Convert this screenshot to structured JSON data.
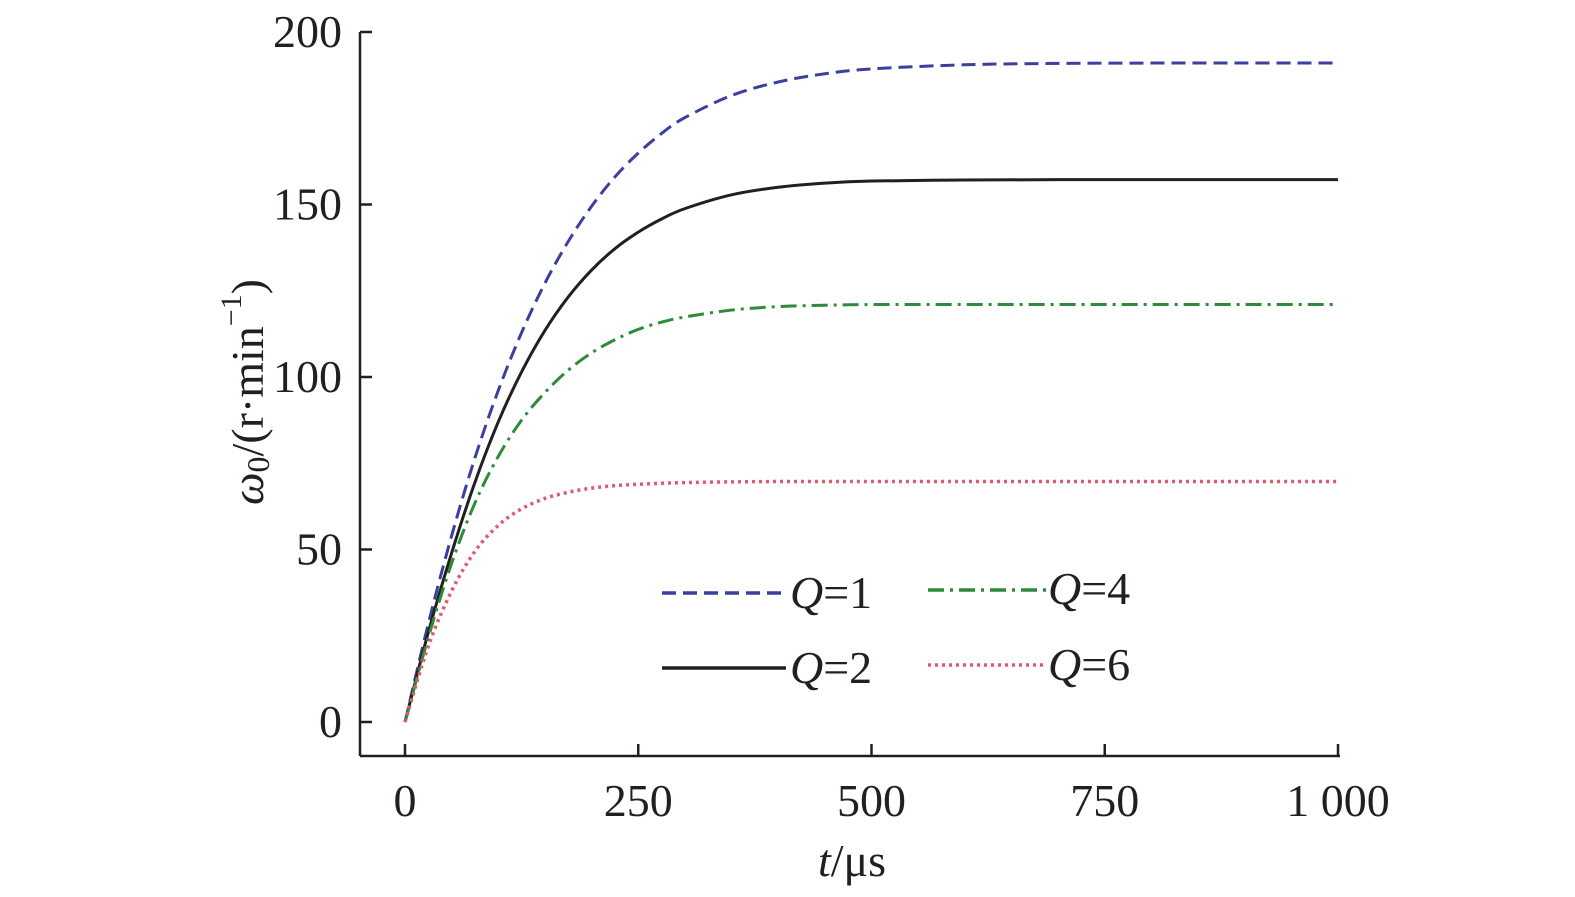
{
  "chart_data": {
    "type": "line",
    "title": "",
    "xlabel": {
      "symbol": "t",
      "unit": "/μs"
    },
    "ylabel": {
      "symbol": "ω",
      "subscript": "0",
      "unit_start": "/(r·min",
      "superscript": "−1",
      "unit_end": ")"
    },
    "xlim": [
      -20,
      1000
    ],
    "ylim": [
      -10,
      200
    ],
    "xticks": [
      0,
      250,
      500,
      750,
      1000
    ],
    "xtick_labels": [
      "0",
      "250",
      "500",
      "750",
      "1 000"
    ],
    "yticks": [
      0,
      50,
      100,
      150,
      200
    ],
    "ytick_labels": [
      "0",
      "50",
      "100",
      "150",
      "200"
    ],
    "grid": false,
    "legend_position": "lower-center",
    "series": [
      {
        "key": "q1",
        "name": "Q=1",
        "name_symbol": "Q",
        "name_value": "=1",
        "color": "#3b3f9e",
        "dash": "dashed",
        "x": [
          0,
          25,
          50,
          75,
          100,
          125,
          150,
          175,
          200,
          225,
          250,
          275,
          300,
          350,
          400,
          450,
          500,
          600,
          700,
          800,
          900,
          1000
        ],
        "y": [
          0,
          28.5,
          54.0,
          76.6,
          96.1,
          112.9,
          127.2,
          139.3,
          149.5,
          158.0,
          164.9,
          170.6,
          175.2,
          181.6,
          185.5,
          187.9,
          189.3,
          190.5,
          190.9,
          191.0,
          191.0,
          191.0
        ]
      },
      {
        "key": "q2",
        "name": "Q=2",
        "name_symbol": "Q",
        "name_value": "=2",
        "color": "#231f20",
        "dash": "solid",
        "x": [
          0,
          25,
          50,
          75,
          100,
          125,
          150,
          175,
          200,
          225,
          250,
          275,
          300,
          350,
          400,
          450,
          500,
          600,
          700,
          800,
          900,
          1000
        ],
        "y": [
          0,
          26.0,
          49.0,
          69.5,
          87.0,
          101.5,
          113.5,
          123.2,
          131.0,
          137.2,
          142.0,
          145.8,
          148.8,
          152.8,
          155.0,
          156.2,
          156.8,
          157.1,
          157.2,
          157.2,
          157.2,
          157.2
        ]
      },
      {
        "key": "q4",
        "name": "Q=4",
        "name_symbol": "Q",
        "name_value": "=4",
        "color": "#2e8b3a",
        "dash": "dashdot",
        "x": [
          0,
          25,
          50,
          75,
          100,
          125,
          150,
          175,
          200,
          225,
          250,
          275,
          300,
          350,
          400,
          450,
          500,
          600,
          700,
          800,
          900,
          1000
        ],
        "y": [
          0,
          24.5,
          46.0,
          63.5,
          77.0,
          87.5,
          95.5,
          102.0,
          107.0,
          110.8,
          113.8,
          115.9,
          117.4,
          119.4,
          120.4,
          120.8,
          121.0,
          121.0,
          121.0,
          121.0,
          121.0,
          121.0
        ]
      },
      {
        "key": "q6",
        "name": "Q=6",
        "name_symbol": "Q",
        "name_value": "=6",
        "color": "#e05a6e",
        "dash": "dotted",
        "x": [
          0,
          25,
          50,
          75,
          100,
          125,
          150,
          175,
          200,
          225,
          250,
          275,
          300,
          350,
          400,
          450,
          500,
          600,
          700,
          800,
          900,
          1000
        ],
        "y": [
          0,
          22.0,
          38.0,
          49.5,
          57.0,
          61.8,
          64.8,
          66.6,
          67.8,
          68.5,
          68.9,
          69.2,
          69.4,
          69.6,
          69.7,
          69.7,
          69.7,
          69.7,
          69.7,
          69.7,
          69.7,
          69.7
        ]
      }
    ]
  }
}
